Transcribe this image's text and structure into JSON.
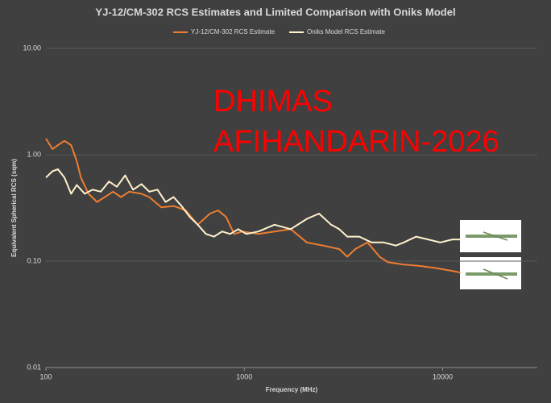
{
  "chart_data": {
    "type": "line",
    "title": "YJ-12/CM-302 RCS Estimates and Limited Comparison with Oniks Model",
    "x_label": "Frequency (MHz)",
    "y_label": "Equivalent Spherical RCS (sqm)",
    "annotations": [
      "DHIMAS",
      "AFIHANDARIN-2026"
    ],
    "annotation_color": "#ff0000",
    "x_log": true,
    "y_log": true,
    "grid": true,
    "legend": "top",
    "xlim": [
      100,
      30000
    ],
    "xticks": [
      100,
      1000,
      10000
    ],
    "ylim": [
      0.01,
      10
    ],
    "yticks": [
      {
        "value": 0.01,
        "label": "0.01"
      },
      {
        "value": 0.1,
        "label": "0.10"
      },
      {
        "value": 1,
        "label": "1.00"
      },
      {
        "value": 10,
        "label": "10.00"
      }
    ],
    "series": [
      {
        "name": "YJ-12/CM-302 RCS Estimate",
        "color": "#ed7d31",
        "x": [
          100,
          108,
          115,
          124,
          134,
          143,
          150,
          164,
          181,
          198,
          218,
          239,
          263,
          303,
          332,
          382,
          440,
          507,
          583,
          671,
          738,
          810,
          889,
          977,
          1178,
          1421,
          1714,
          2068,
          2494,
          3010,
          3305,
          3630,
          4178,
          4808,
          5281,
          6371,
          7688,
          9270,
          11190,
          12290
        ],
        "values": [
          1.42,
          1.13,
          1.23,
          1.35,
          1.23,
          0.87,
          0.61,
          0.43,
          0.36,
          0.4,
          0.45,
          0.4,
          0.45,
          0.43,
          0.4,
          0.32,
          0.33,
          0.3,
          0.22,
          0.28,
          0.3,
          0.26,
          0.18,
          0.19,
          0.18,
          0.19,
          0.2,
          0.15,
          0.14,
          0.13,
          0.11,
          0.13,
          0.15,
          0.11,
          0.098,
          0.093,
          0.09,
          0.086,
          0.081,
          0.078
        ]
      },
      {
        "name": "Oniks Model RCS Estimate",
        "color": "#fff2cc",
        "x": [
          100,
          108,
          115,
          124,
          134,
          143,
          157,
          172,
          189,
          208,
          228,
          251,
          275,
          303,
          332,
          365,
          401,
          440,
          483,
          531,
          583,
          641,
          703,
          773,
          849,
          932,
          1024,
          1178,
          1421,
          1714,
          2068,
          2383,
          2741,
          3010,
          3305,
          3802,
          4383,
          5048,
          5808,
          6371,
          7345,
          8453,
          9727,
          11190,
          12290
        ],
        "values": [
          0.61,
          0.7,
          0.73,
          0.61,
          0.43,
          0.52,
          0.43,
          0.47,
          0.45,
          0.56,
          0.5,
          0.64,
          0.47,
          0.53,
          0.45,
          0.47,
          0.36,
          0.4,
          0.33,
          0.26,
          0.22,
          0.18,
          0.17,
          0.19,
          0.18,
          0.2,
          0.18,
          0.19,
          0.22,
          0.2,
          0.25,
          0.28,
          0.22,
          0.2,
          0.17,
          0.17,
          0.15,
          0.15,
          0.14,
          0.15,
          0.17,
          0.16,
          0.15,
          0.16,
          0.16
        ]
      }
    ]
  }
}
